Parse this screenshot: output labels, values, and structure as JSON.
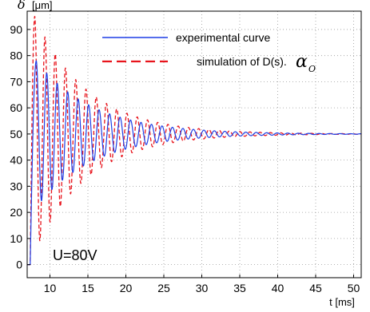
{
  "chart_data": {
    "type": "line",
    "title": "",
    "xlabel": "t [ms]",
    "ylabel_symbol": "δ",
    "ylabel_unit": "[μm]",
    "xlim": [
      7,
      51
    ],
    "ylim": [
      -5,
      97
    ],
    "xticks": [
      10,
      15,
      20,
      25,
      30,
      35,
      40,
      45,
      50
    ],
    "yticks": [
      0,
      10,
      20,
      30,
      40,
      50,
      60,
      70,
      80,
      90
    ],
    "grid": true,
    "legend_position": "top-right",
    "annotation": "U=80V",
    "series": [
      {
        "name": "experimental curve",
        "color": "#1f3fe6",
        "style": "solid",
        "model": {
          "t_start": 7.4,
          "baseline": 0,
          "final": 50,
          "first_peak": 78,
          "first_peak_t": 8.2,
          "period_ms": 1.38,
          "decay_ms": 7.5
        }
      },
      {
        "name": "simulation of D(s).",
        "name_symbol": "α",
        "name_subscript": "O",
        "color": "#e8141c",
        "style": "dashed",
        "model": {
          "t_start": 7.4,
          "baseline": 0,
          "final": 50,
          "first_peak": 95,
          "first_peak_t": 8.0,
          "period_ms": 1.35,
          "decay_ms": 7.0
        }
      }
    ]
  }
}
